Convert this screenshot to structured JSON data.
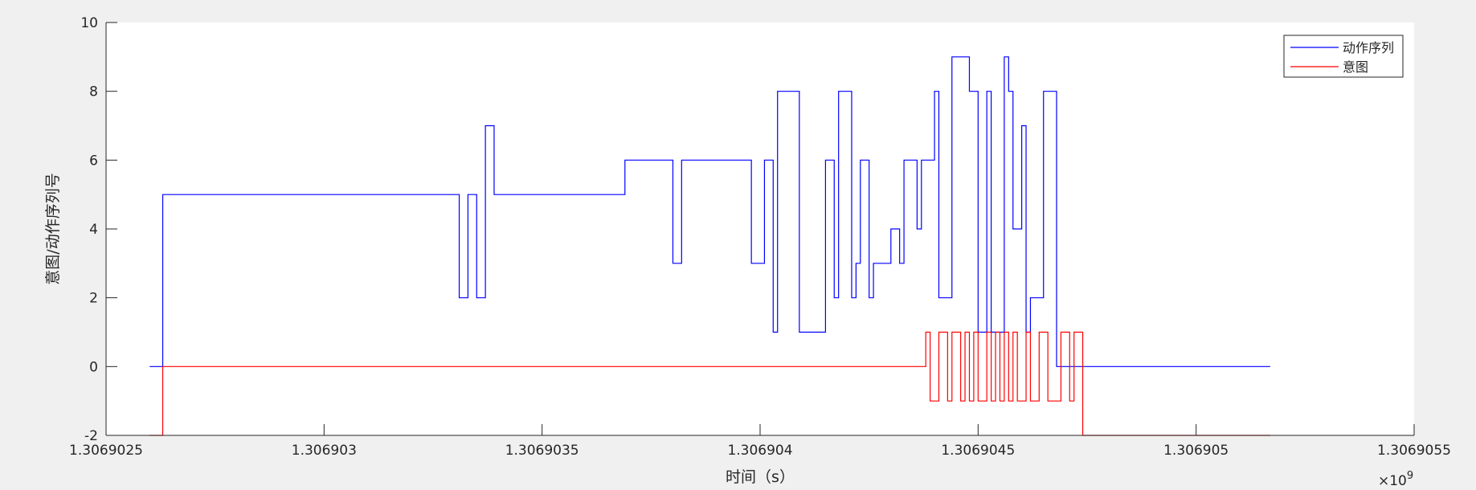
{
  "chart_data": {
    "type": "line",
    "title": "",
    "xlabel": "时间（s）",
    "ylabel": "意图/动作序列号",
    "xlim": [
      1.3069025,
      1.3069055
    ],
    "ylim": [
      -2,
      10
    ],
    "x_ticks": [
      1.3069025,
      1.306903,
      1.3069035,
      1.306904,
      1.3069045,
      1.306905,
      1.3069055
    ],
    "x_tick_labels": [
      "1.3069025",
      "1.306903",
      "1.3069035",
      "1.306904",
      "1.3069045",
      "1.306905",
      "1.3069055"
    ],
    "y_ticks": [
      -2,
      0,
      2,
      4,
      6,
      8,
      10
    ],
    "y_tick_labels": [
      "-2",
      "0",
      "2",
      "4",
      "6",
      "8",
      "10"
    ],
    "x_exponent_label": "×10",
    "x_exponent_power": "9",
    "legend_position": "top-right",
    "grid": false,
    "series": [
      {
        "name": "动作序列",
        "color": "#0000ff",
        "step": true,
        "x": [
          1.3069026,
          1.30690263,
          1.30690331,
          1.30690333,
          1.30690335,
          1.30690337,
          1.30690339,
          1.3069034,
          1.30690369,
          1.3069038,
          1.30690382,
          1.30690398,
          1.30690401,
          1.30690403,
          1.30690404,
          1.30690409,
          1.30690415,
          1.30690417,
          1.30690418,
          1.30690421,
          1.30690422,
          1.30690423,
          1.30690425,
          1.30690426,
          1.30690429,
          1.3069043,
          1.30690432,
          1.30690433,
          1.30690436,
          1.30690437,
          1.3069044,
          1.30690441,
          1.30690444,
          1.30690448,
          1.3069045,
          1.30690452,
          1.30690453,
          1.30690456,
          1.30690457,
          1.30690458,
          1.3069046,
          1.30690461,
          1.30690462,
          1.30690463,
          1.30690465,
          1.30690468,
          1.3069047,
          1.30690474,
          1.30690517
        ],
        "y": [
          0,
          5,
          2,
          5,
          2,
          7,
          5,
          5,
          6,
          3,
          6,
          3,
          6,
          1,
          8,
          1,
          6,
          2,
          8,
          2,
          3,
          6,
          2,
          3,
          3,
          4,
          3,
          6,
          4,
          6,
          8,
          2,
          9,
          8,
          1,
          8,
          1,
          9,
          8,
          4,
          7,
          1,
          2,
          2,
          8,
          0,
          0,
          0,
          0
        ]
      },
      {
        "name": "意图",
        "color": "#ff0000",
        "step": true,
        "x": [
          1.3069026,
          1.30690263,
          1.30690438,
          1.30690439,
          1.30690441,
          1.30690443,
          1.30690444,
          1.30690446,
          1.30690447,
          1.30690448,
          1.30690449,
          1.3069045,
          1.30690452,
          1.30690453,
          1.30690454,
          1.30690455,
          1.30690456,
          1.30690457,
          1.30690458,
          1.30690459,
          1.30690461,
          1.30690462,
          1.30690464,
          1.30690466,
          1.30690469,
          1.30690471,
          1.30690472,
          1.30690474,
          1.30690517
        ],
        "y": [
          -2,
          0,
          1,
          -1,
          1,
          -1,
          1,
          -1,
          1,
          -1,
          1,
          -1,
          1,
          -1,
          1,
          -1,
          1,
          -1,
          1,
          -1,
          1,
          -1,
          1,
          -1,
          1,
          -1,
          1,
          -2,
          -2
        ]
      }
    ]
  }
}
